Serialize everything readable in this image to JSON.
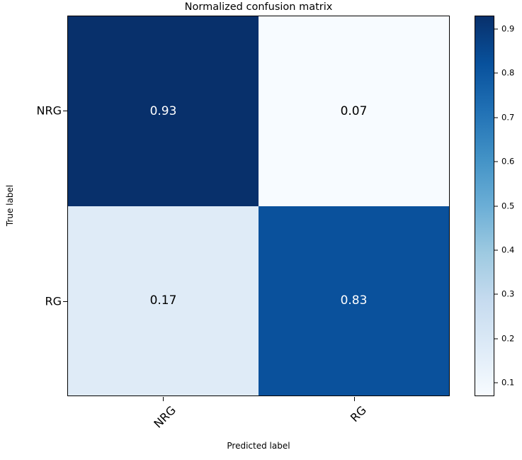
{
  "figure": {
    "background": "#ffffff"
  },
  "chart_data": {
    "type": "heatmap",
    "title": "Normalized confusion matrix",
    "xlabel": "Predicted label",
    "ylabel": "True label",
    "x_tick_labels": [
      "NRG",
      "RG"
    ],
    "y_tick_labels": [
      "NRG",
      "RG"
    ],
    "matrix": [
      [
        0.93,
        0.07
      ],
      [
        0.17,
        0.83
      ]
    ],
    "cells": [
      {
        "row": "NRG",
        "col": "NRG",
        "value": "0.93",
        "color": "#08306b",
        "text_color": "#ffffff"
      },
      {
        "row": "NRG",
        "col": "RG",
        "value": "0.07",
        "color": "#f7fbff",
        "text_color": "#000000"
      },
      {
        "row": "RG",
        "col": "NRG",
        "value": "0.17",
        "color": "#dfebf7",
        "text_color": "#000000"
      },
      {
        "row": "RG",
        "col": "RG",
        "value": "0.83",
        "color": "#0a519c",
        "text_color": "#ffffff"
      }
    ],
    "colormap": "Blues",
    "grid": false,
    "legend_position": "right-colorbar",
    "colorbar": {
      "vmin": 0.07,
      "vmax": 0.93,
      "ticks": [
        "0.9",
        "0.8",
        "0.7",
        "0.6",
        "0.5",
        "0.4",
        "0.3",
        "0.2",
        "0.1"
      ],
      "gradient_stops_bottom_to_top": [
        "#f7fbff",
        "#deebf7",
        "#c6dbef",
        "#9ecae1",
        "#6baed6",
        "#4292c6",
        "#2171b5",
        "#08519c",
        "#08306b"
      ]
    }
  }
}
